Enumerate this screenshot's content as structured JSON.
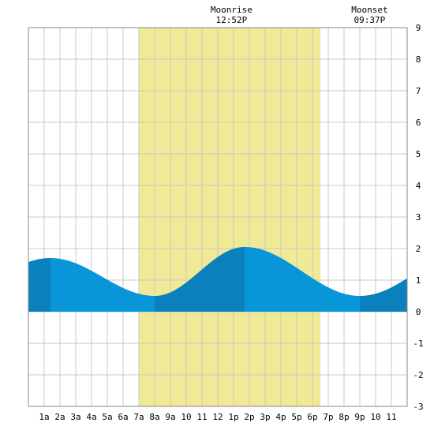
{
  "chart_data": {
    "type": "area",
    "title": "",
    "xlabel": "",
    "ylabel": "",
    "xlim": [
      0,
      24
    ],
    "ylim": [
      -3,
      9
    ],
    "y_ticks": [
      -3,
      -2,
      -1,
      0,
      1,
      2,
      3,
      4,
      5,
      6,
      7,
      8,
      9
    ],
    "x_tick_labels": [
      {
        "hour": 1,
        "label": "1a"
      },
      {
        "hour": 2,
        "label": "2a"
      },
      {
        "hour": 3,
        "label": "3a"
      },
      {
        "hour": 4,
        "label": "4a"
      },
      {
        "hour": 5,
        "label": "5a"
      },
      {
        "hour": 6,
        "label": "6a"
      },
      {
        "hour": 7,
        "label": "7a"
      },
      {
        "hour": 8,
        "label": "8a"
      },
      {
        "hour": 9,
        "label": "9a"
      },
      {
        "hour": 10,
        "label": "10"
      },
      {
        "hour": 11,
        "label": "11"
      },
      {
        "hour": 12,
        "label": "12"
      },
      {
        "hour": 13,
        "label": "1p"
      },
      {
        "hour": 14,
        "label": "2p"
      },
      {
        "hour": 15,
        "label": "3p"
      },
      {
        "hour": 16,
        "label": "4p"
      },
      {
        "hour": 17,
        "label": "5p"
      },
      {
        "hour": 18,
        "label": "6p"
      },
      {
        "hour": 19,
        "label": "7p"
      },
      {
        "hour": 20,
        "label": "8p"
      },
      {
        "hour": 21,
        "label": "9p"
      },
      {
        "hour": 22,
        "label": "10"
      },
      {
        "hour": 23,
        "label": "11"
      }
    ],
    "grid": true,
    "daylight": {
      "start_hour": 7.0,
      "end_hour": 18.5,
      "color": "#f0ea96"
    },
    "tide_extremes": [
      {
        "hour": 1.4,
        "value": 1.7,
        "kind": "high"
      },
      {
        "hour": 8.0,
        "value": 0.5,
        "kind": "low"
      },
      {
        "hour": 13.7,
        "value": 2.05,
        "kind": "high"
      },
      {
        "hour": 21.0,
        "value": 0.5,
        "kind": "low"
      }
    ],
    "series": [
      {
        "values": [
          {
            "x": 0,
            "y": 1.58
          },
          {
            "x": 1,
            "y": 1.68
          },
          {
            "x": 2,
            "y": 1.66
          },
          {
            "x": 3,
            "y": 1.52
          },
          {
            "x": 4,
            "y": 1.27
          },
          {
            "x": 5,
            "y": 0.98
          },
          {
            "x": 6,
            "y": 0.73
          },
          {
            "x": 7,
            "y": 0.56
          },
          {
            "x": 8,
            "y": 0.5
          },
          {
            "x": 9,
            "y": 0.62
          },
          {
            "x": 10,
            "y": 0.96
          },
          {
            "x": 11,
            "y": 1.4
          },
          {
            "x": 12,
            "y": 1.78
          },
          {
            "x": 13,
            "y": 2.0
          },
          {
            "x": 14,
            "y": 2.03
          },
          {
            "x": 15,
            "y": 1.88
          },
          {
            "x": 16,
            "y": 1.6
          },
          {
            "x": 17,
            "y": 1.23
          },
          {
            "x": 18,
            "y": 0.88
          },
          {
            "x": 19,
            "y": 0.64
          },
          {
            "x": 20,
            "y": 0.52
          },
          {
            "x": 21,
            "y": 0.5
          },
          {
            "x": 22,
            "y": 0.66
          },
          {
            "x": 23,
            "y": 0.93
          },
          {
            "x": 24,
            "y": 1.25
          }
        ]
      }
    ],
    "annotations": [
      {
        "label": "Moonrise",
        "time": "12:52P",
        "hour": 12.87
      },
      {
        "label": "Moonset",
        "time": "09:37P",
        "hour": 21.62
      }
    ],
    "colors": {
      "tide_fill": "#0896d8",
      "tide_fill_dark": "#0a80bd",
      "grid": "#c8c8c8",
      "border": "#888888"
    }
  }
}
